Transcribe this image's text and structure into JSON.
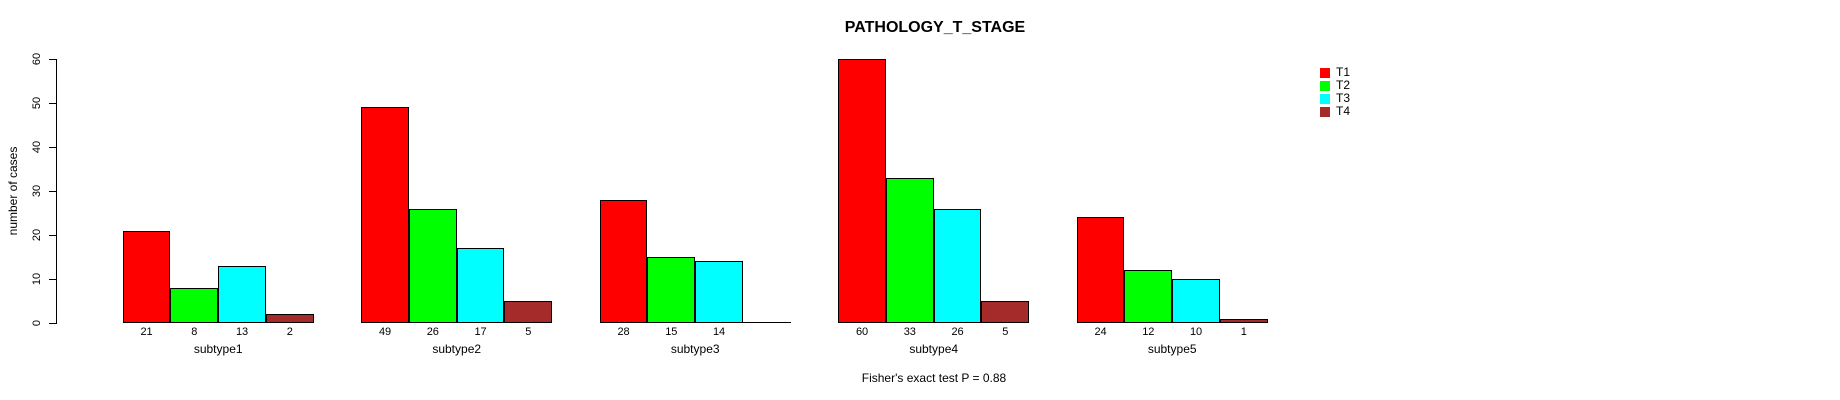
{
  "chart_data": {
    "type": "bar",
    "title": "PATHOLOGY_T_STAGE",
    "ylabel": "number of cases",
    "footer": "Fisher's exact test P = 0.88",
    "categories": [
      "subtype1",
      "subtype2",
      "subtype3",
      "subtype4",
      "subtype5"
    ],
    "series": [
      {
        "name": "T1",
        "color": "#ff0000",
        "values": [
          21,
          49,
          28,
          60,
          24
        ]
      },
      {
        "name": "T2",
        "color": "#00ff00",
        "values": [
          8,
          26,
          15,
          33,
          12
        ]
      },
      {
        "name": "T3",
        "color": "#00ffff",
        "values": [
          13,
          17,
          14,
          26,
          10
        ]
      },
      {
        "name": "T4",
        "color": "#a52a2a",
        "values": [
          2,
          5,
          0,
          5,
          1
        ]
      }
    ],
    "ylim": [
      0,
      60
    ],
    "yticks": [
      0,
      10,
      20,
      30,
      40,
      50,
      60
    ],
    "legend_position": "right",
    "grid": false,
    "background": "#ffffff",
    "text_color": "#000000",
    "bar_border_color": "#000000",
    "value_labels_shown": true,
    "zero_value_labels_hidden": true
  }
}
